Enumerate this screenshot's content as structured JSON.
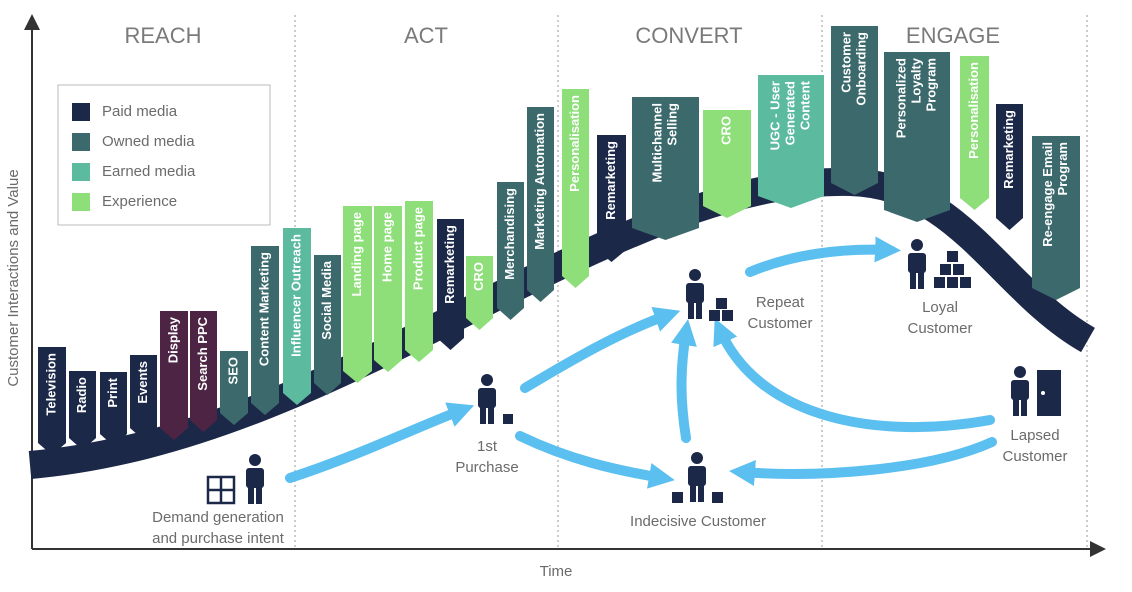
{
  "phases": [
    "REACH",
    "ACT",
    "CONVERT",
    "ENGAGE"
  ],
  "axes": {
    "y_label": "Customer Interactions and Value",
    "x_label": "Time"
  },
  "legend": [
    {
      "label": "Paid media",
      "color": "#1b2848"
    },
    {
      "label": "Owned media",
      "color": "#3c6a6c"
    },
    {
      "label": "Earned media",
      "color": "#5cbb9e"
    },
    {
      "label": "Experience",
      "color": "#8ede7a"
    }
  ],
  "tags": [
    {
      "lines": [
        "Television"
      ],
      "color": "#1b2848"
    },
    {
      "lines": [
        "Radio"
      ],
      "color": "#1b2848"
    },
    {
      "lines": [
        "Print"
      ],
      "color": "#1b2848"
    },
    {
      "lines": [
        "Events"
      ],
      "color": "#1b2848"
    },
    {
      "lines": [
        "Display"
      ],
      "color": "#4d2444"
    },
    {
      "lines": [
        "Search PPC"
      ],
      "color": "#4d2444"
    },
    {
      "lines": [
        "SEO"
      ],
      "color": "#3c6a6c"
    },
    {
      "lines": [
        "Content Marketing"
      ],
      "color": "#3c6a6c"
    },
    {
      "lines": [
        "Influencer Outreach"
      ],
      "color": "#5cbb9e"
    },
    {
      "lines": [
        "Social Media"
      ],
      "color": "#3c6a6c"
    },
    {
      "lines": [
        "Landing page"
      ],
      "color": "#8ede7a"
    },
    {
      "lines": [
        "Home page"
      ],
      "color": "#8ede7a"
    },
    {
      "lines": [
        "Product page"
      ],
      "color": "#8ede7a"
    },
    {
      "lines": [
        "Remarketing"
      ],
      "color": "#1b2848"
    },
    {
      "lines": [
        "CRO"
      ],
      "color": "#8ede7a"
    },
    {
      "lines": [
        "Merchandising"
      ],
      "color": "#3c6a6c"
    },
    {
      "lines": [
        "Marketing Automation"
      ],
      "color": "#3c6a6c"
    },
    {
      "lines": [
        "Personalisation"
      ],
      "color": "#8ede7a"
    },
    {
      "lines": [
        "Remarketing"
      ],
      "color": "#1b2848"
    },
    {
      "lines": [
        "Multichannel",
        "Selling"
      ],
      "color": "#3c6a6c"
    },
    {
      "lines": [
        "CRO"
      ],
      "color": "#8ede7a"
    },
    {
      "lines": [
        "UGC - User",
        "Generated",
        "Content"
      ],
      "color": "#5cbb9e"
    },
    {
      "lines": [
        "Customer",
        "Onboarding"
      ],
      "color": "#3c6a6c"
    },
    {
      "lines": [
        "Personalized",
        "Loyalty",
        "Program"
      ],
      "color": "#3c6a6c"
    },
    {
      "lines": [
        "Personalisation"
      ],
      "color": "#8ede7a"
    },
    {
      "lines": [
        "Remarketing"
      ],
      "color": "#1b2848"
    },
    {
      "lines": [
        "Re-engage Email",
        "Program"
      ],
      "color": "#3c6a6c"
    }
  ],
  "nodes": [
    {
      "lines": [
        "Demand generation",
        "and purchase intent"
      ]
    },
    {
      "lines": [
        "1st",
        "Purchase"
      ]
    },
    {
      "lines": [
        "Repeat",
        "Customer"
      ]
    },
    {
      "lines": [
        "Loyal",
        "Customer"
      ]
    },
    {
      "lines": [
        "Lapsed",
        "Customer"
      ]
    },
    {
      "lines": [
        "Indecisive Customer"
      ]
    }
  ]
}
